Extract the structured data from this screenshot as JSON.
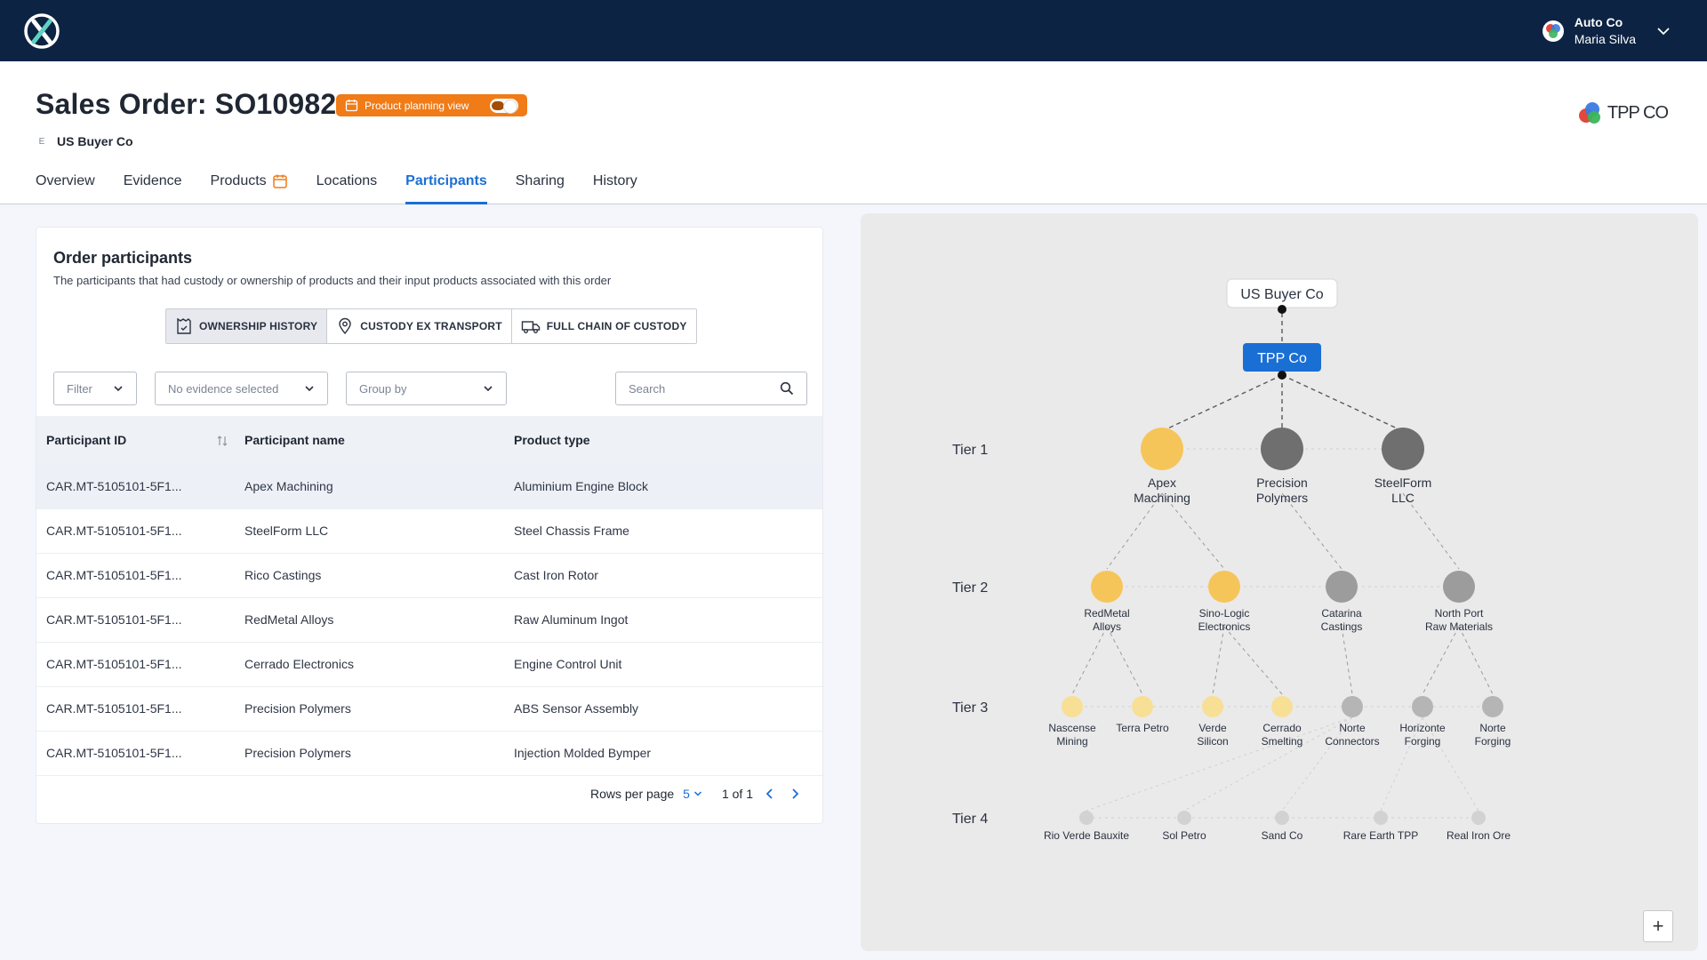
{
  "app": {
    "logo_icon": "app-x-logo-icon",
    "user": {
      "org": "Auto Co",
      "name": "Maria Silva"
    }
  },
  "header": {
    "title": "Sales Order: SO10982",
    "planning_chip_label": "Product planning view",
    "buyer_prefix": "E",
    "buyer": "US Buyer Co",
    "brand": "TPP CO"
  },
  "tabs": [
    {
      "label": "Overview",
      "active": false
    },
    {
      "label": "Evidence",
      "active": false
    },
    {
      "label": "Products",
      "active": false
    },
    {
      "label": "Locations",
      "active": false
    },
    {
      "label": "Participants",
      "active": true
    },
    {
      "label": "Sharing",
      "active": false
    },
    {
      "label": "History",
      "active": false
    }
  ],
  "participants_card": {
    "title": "Order participants",
    "description": "The participants that had custody or ownership of products and their input products associated with this order",
    "views": [
      {
        "label": "OWNERSHIP HISTORY",
        "icon": "ownership-icon",
        "active": true
      },
      {
        "label": "CUSTODY EX TRANSPORT",
        "icon": "location-pin-icon",
        "active": false
      },
      {
        "label": "FULL CHAIN OF CUSTODY",
        "icon": "truck-icon",
        "active": false
      }
    ],
    "filters": {
      "filter_label": "Filter",
      "evidence_label": "No evidence selected",
      "group_by_label": "Group by",
      "search_placeholder": "Search"
    },
    "columns": [
      "Participant ID",
      "Participant name",
      "Product type"
    ],
    "rows": [
      {
        "id": "CAR.MT-5105101-5F1...",
        "name": "Apex Machining",
        "product": "Aluminium Engine Block"
      },
      {
        "id": "CAR.MT-5105101-5F1...",
        "name": "SteelForm LLC",
        "product": "Steel Chassis Frame"
      },
      {
        "id": "CAR.MT-5105101-5F1...",
        "name": "Rico Castings",
        "product": "Cast Iron Rotor"
      },
      {
        "id": "CAR.MT-5105101-5F1...",
        "name": "RedMetal Alloys",
        "product": "Raw Aluminum Ingot"
      },
      {
        "id": "CAR.MT-5105101-5F1...",
        "name": "Cerrado Electronics",
        "product": "Engine Control Unit"
      },
      {
        "id": "CAR.MT-5105101-5F1...",
        "name": "Precision Polymers",
        "product": "ABS Sensor Assembly"
      },
      {
        "id": "CAR.MT-5105101-5F1...",
        "name": "Precision Polymers",
        "product": "Injection Molded Bymper"
      }
    ],
    "pager": {
      "rows_per_page_label": "Rows per page",
      "rows_per_page": "5",
      "page_info": "1 of 1"
    }
  },
  "graph": {
    "root": "US Buyer Co",
    "seller": "TPP Co",
    "tiers": [
      "Tier 1",
      "Tier 2",
      "Tier 3",
      "Tier 4"
    ],
    "tier1": [
      {
        "name": "Apex Machining",
        "highlight": true
      },
      {
        "name": "Precision Polymers",
        "highlight": false
      },
      {
        "name": "SteelForm LLC",
        "highlight": false
      }
    ],
    "tier2": [
      {
        "name": "RedMetal Alloys",
        "highlight": true
      },
      {
        "name": "Sino-Logic Electronics",
        "highlight": true
      },
      {
        "name": "Catarina Castings",
        "highlight": false
      },
      {
        "name": "North Port Raw Materials",
        "highlight": false
      }
    ],
    "tier3": [
      {
        "name": "Nascense Mining",
        "highlight": true
      },
      {
        "name": "Terra Petro",
        "highlight": true
      },
      {
        "name": "Verde Silicon",
        "highlight": true
      },
      {
        "name": "Cerrado Smelting",
        "highlight": true
      },
      {
        "name": "Norte Connectors",
        "highlight": false
      },
      {
        "name": "Horizonte Forging",
        "highlight": false
      },
      {
        "name": "Norte Forging",
        "highlight": false
      }
    ],
    "tier4": [
      {
        "name": "Rio Verde Bauxite"
      },
      {
        "name": "Sol Petro"
      },
      {
        "name": "Sand Co"
      },
      {
        "name": "Rare Earth TPP"
      },
      {
        "name": "Real Iron Ore"
      }
    ],
    "zoom_in_label": "+",
    "colors": {
      "accent": "#1a6fd4",
      "highlight": "#f6c55a",
      "highlight_light": "#f8df96",
      "muted": "#6f6f6f",
      "muted_light": "#b5b5b5"
    }
  }
}
